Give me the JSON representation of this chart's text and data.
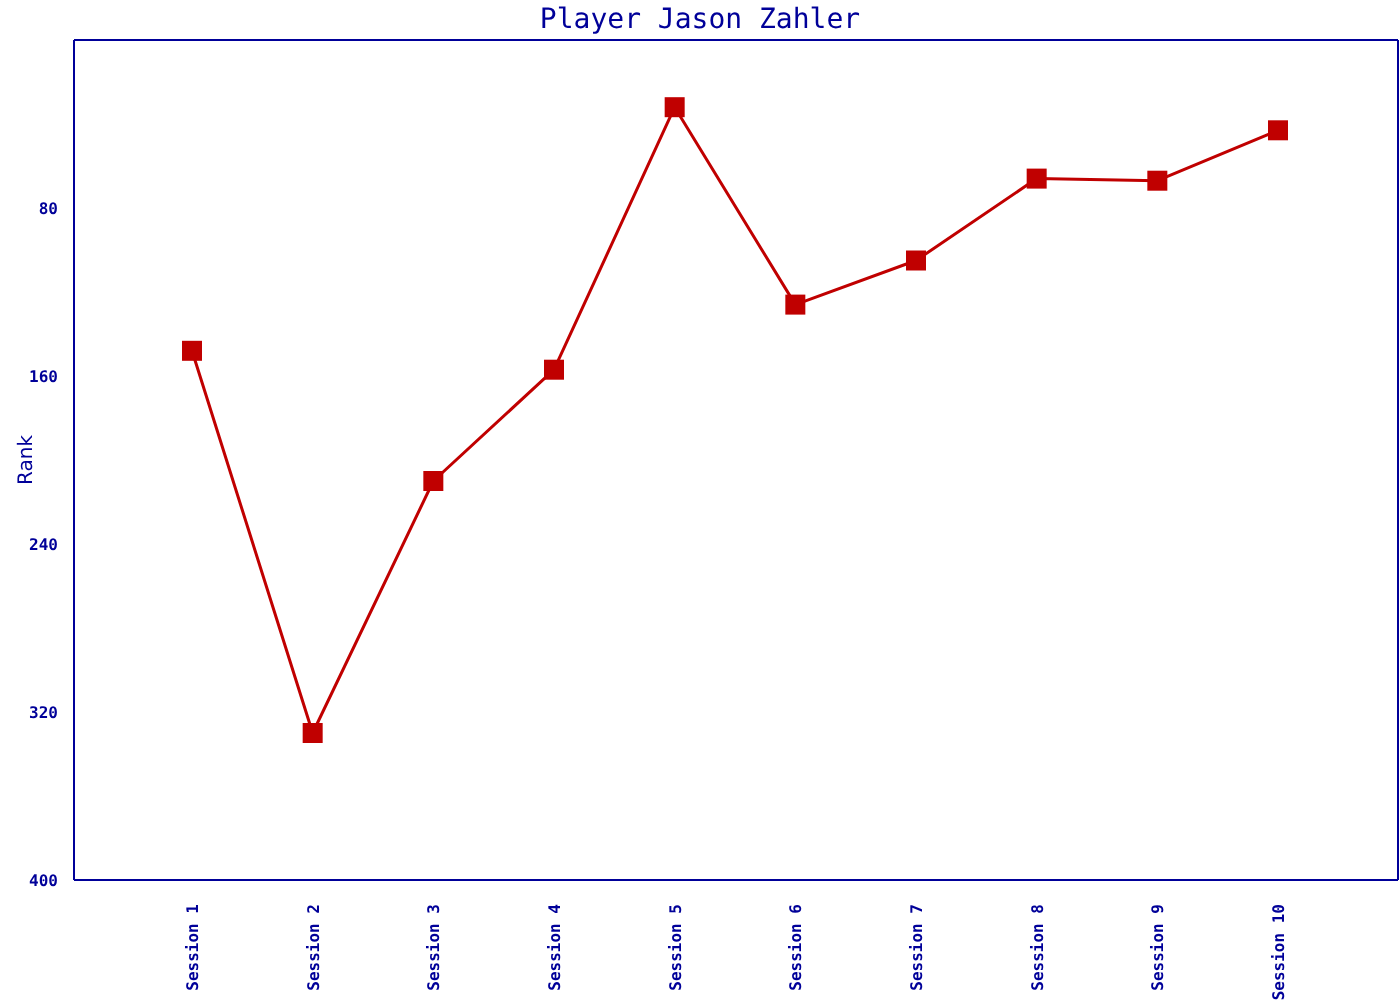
{
  "chart_data": {
    "type": "line",
    "title": "Player Jason Zahler",
    "ylabel": "Rank",
    "categories": [
      "Session 1",
      "Session 2",
      "Session 3",
      "Session 4",
      "Session 5",
      "Session 6",
      "Session 7",
      "Session 8",
      "Session 9",
      "Session 10"
    ],
    "series": [
      {
        "color": "#c00000",
        "values": [
          148,
          330,
          210,
          157,
          32,
          126,
          105,
          66,
          67,
          43
        ]
      }
    ],
    "ylim": [
      400,
      0
    ],
    "yticks": [
      80,
      160,
      240,
      320,
      400
    ],
    "marker": "square",
    "grid": false,
    "legend": false
  }
}
